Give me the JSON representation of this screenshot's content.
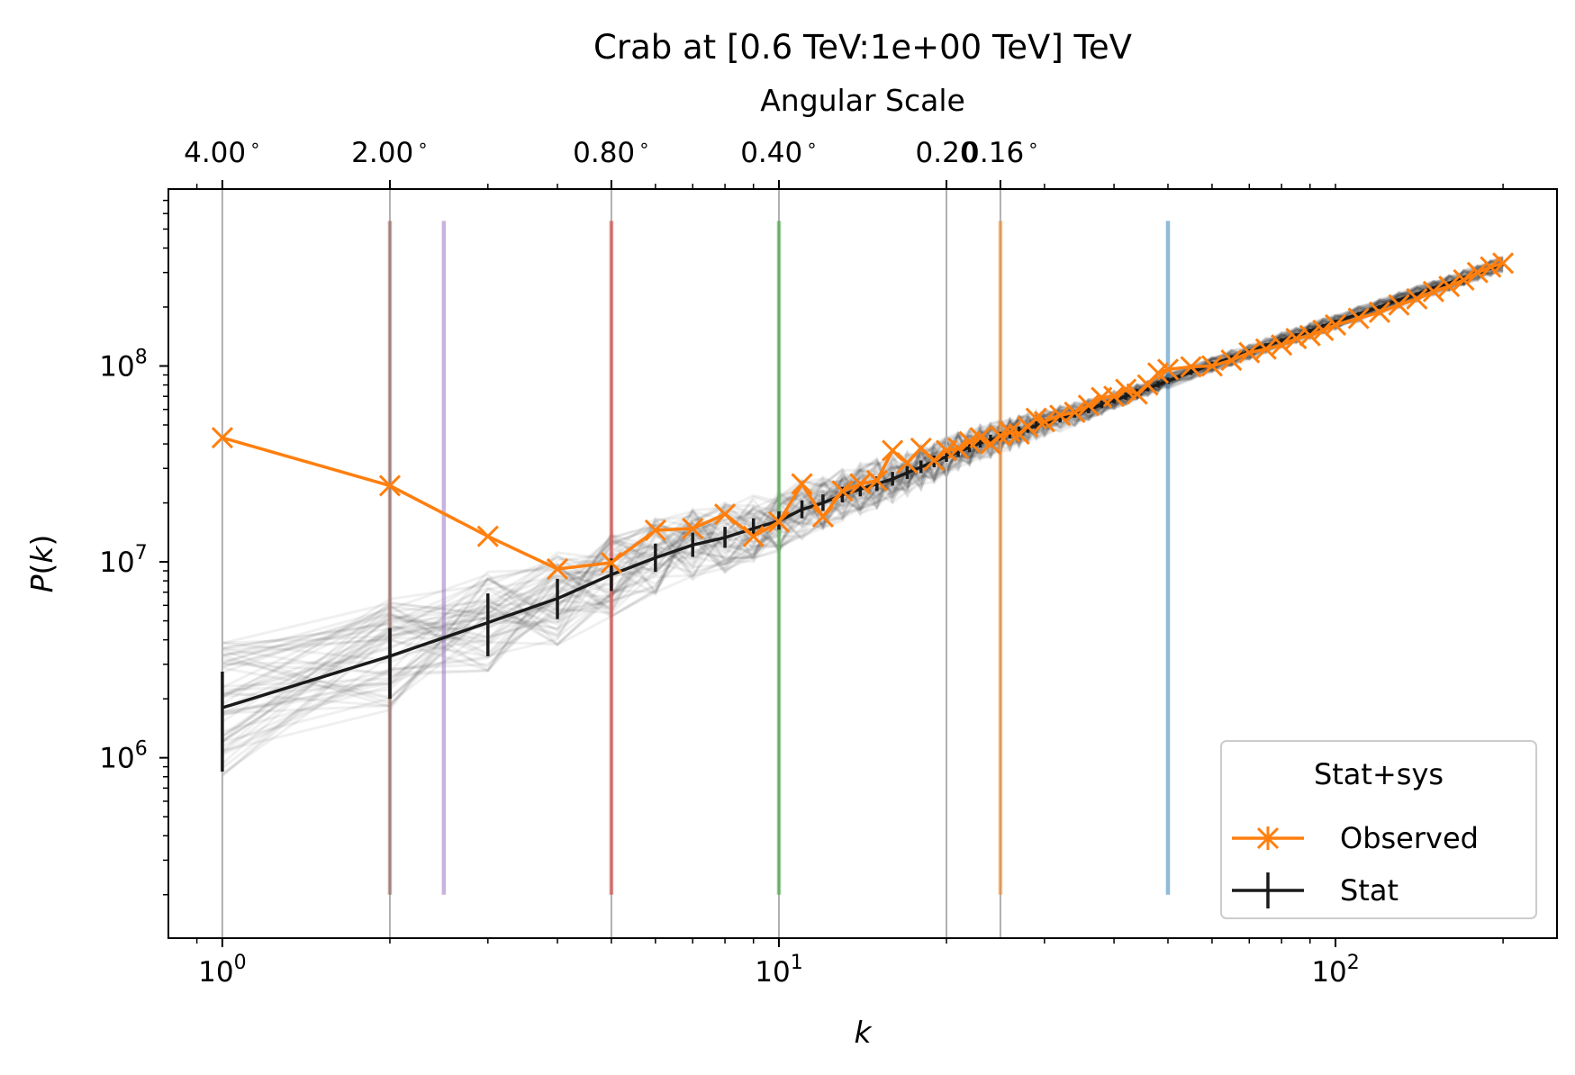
{
  "chart_data": {
    "type": "line",
    "title": "Crab at [0.6 TeV:1e+00 TeV] TeV",
    "xlabel": "k",
    "ylabel": "P(k)",
    "xscale": "log",
    "yscale": "log",
    "xlim": [
      0.8,
      250
    ],
    "ylim": [
      120000,
      800000000
    ],
    "x_ticks": [
      {
        "value": 1,
        "base": "10",
        "exp": "0"
      },
      {
        "value": 10,
        "base": "10",
        "exp": "1"
      },
      {
        "value": 100,
        "base": "10",
        "exp": "2"
      }
    ],
    "y_ticks": [
      {
        "value": 1000000,
        "base": "10",
        "exp": "6"
      },
      {
        "value": 10000000,
        "base": "10",
        "exp": "7"
      },
      {
        "value": 100000000,
        "base": "10",
        "exp": "8"
      }
    ],
    "top_axis": {
      "label": "Angular Scale",
      "ticks": [
        {
          "k": 1,
          "label": "4.00$^\\circ$",
          "text": "4.00",
          "deg": "∘"
        },
        {
          "k": 2,
          "label": "2.00",
          "text": "2.00",
          "deg": "∘"
        },
        {
          "k": 5,
          "label": "0.80",
          "text": "0.80",
          "deg": "∘"
        },
        {
          "k": 10,
          "label": "0.40",
          "text": "0.40",
          "deg": "∘"
        },
        {
          "k": 20,
          "label": "0.20",
          "text": "0.20",
          "deg": ""
        },
        {
          "k": 25,
          "label": "0.16",
          "text": "0.16",
          "deg": "∘"
        }
      ]
    },
    "vertical_lines": [
      {
        "k": 2,
        "color": "#8c564b"
      },
      {
        "k": 2.5,
        "color": "#9467bd"
      },
      {
        "k": 5,
        "color": "#d62728"
      },
      {
        "k": 10,
        "color": "#2ca02c"
      },
      {
        "k": 25,
        "color": "#ff7f0e"
      },
      {
        "k": 50,
        "color": "#1f77b4"
      }
    ],
    "grid_lines_k": [
      1,
      2,
      5,
      10,
      20,
      25
    ],
    "series": [
      {
        "name": "Observed",
        "color": "#ff7f0e",
        "marker": "x",
        "x": [
          1,
          2,
          3,
          4,
          5,
          6,
          7,
          8,
          9,
          10,
          11,
          12,
          13,
          14,
          15,
          16,
          17,
          18,
          19,
          20,
          21,
          22,
          23,
          24,
          25,
          26,
          27,
          28,
          29,
          30,
          32,
          34,
          36,
          38,
          40,
          42,
          44,
          46,
          48,
          50,
          55,
          60,
          65,
          70,
          75,
          80,
          85,
          90,
          95,
          100,
          110,
          120,
          130,
          140,
          150,
          160,
          170,
          180,
          190,
          200
        ],
        "y": [
          43000000.0,
          24500000.0,
          13500000.0,
          9200000.0,
          9900000.0,
          14500000.0,
          14800000.0,
          17500000.0,
          13500000.0,
          16000000.0,
          25000000.0,
          17000000.0,
          23000000.0,
          25000000.0,
          26000000.0,
          37000000.0,
          32000000.0,
          38000000.0,
          33000000.0,
          37000000.0,
          38000000.0,
          41000000.0,
          43000000.0,
          40000000.0,
          44000000.0,
          46000000.0,
          45000000.0,
          49000000.0,
          54000000.0,
          52000000.0,
          56000000.0,
          58000000.0,
          63000000.0,
          69000000.0,
          70000000.0,
          76000000.0,
          72000000.0,
          80000000.0,
          92000000.0,
          96000000.0,
          99000000.0,
          100000000.0,
          107000000.0,
          117000000.0,
          122000000.0,
          128000000.0,
          138000000.0,
          143000000.0,
          152000000.0,
          162000000.0,
          175000000.0,
          188000000.0,
          205000000.0,
          220000000.0,
          240000000.0,
          255000000.0,
          275000000.0,
          300000000.0,
          320000000.0,
          335000000.0
        ]
      },
      {
        "name": "Stat",
        "color": "#1a1a1a",
        "marker": "errorbar",
        "x": [
          1,
          2,
          3,
          4,
          5,
          6,
          7,
          8,
          9,
          10,
          11,
          12,
          13,
          14,
          15,
          16,
          17,
          18,
          19,
          20,
          21,
          22,
          23,
          24,
          25,
          26,
          27,
          28,
          29,
          30,
          32,
          34,
          36,
          38,
          40,
          42,
          44,
          46,
          48,
          50,
          55,
          60,
          65,
          70,
          75,
          80,
          85,
          90,
          95,
          100,
          110,
          120,
          130,
          140,
          150,
          160,
          170,
          180,
          190,
          200
        ],
        "y": [
          1800000.0,
          3300000.0,
          4900000.0,
          6500000.0,
          8600000.0,
          10500000.0,
          12200000.0,
          13300000.0,
          14800000.0,
          16200000.0,
          18500000.0,
          20000000.0,
          22000000.0,
          23500000.0,
          25000000.0,
          26500000.0,
          28500000.0,
          30500000.0,
          32500000.0,
          34500000.0,
          36500000.0,
          38500000.0,
          40500000.0,
          42000000.0,
          43500000.0,
          45000000.0,
          46500000.0,
          48000000.0,
          49500000.0,
          51000000.0,
          54000000.0,
          57000000.0,
          60000000.0,
          63500000.0,
          67000000.0,
          70000000.0,
          73500000.0,
          77000000.0,
          80500000.0,
          84000000.0,
          93000000.0,
          102000000.0,
          110000000.0,
          118000000.0,
          127000000.0,
          135000000.0,
          143000000.0,
          151000000.0,
          160000000.0,
          168000000.0,
          184000000.0,
          200000000.0,
          217000000.0,
          233000000.0,
          250000000.0,
          265000000.0,
          282000000.0,
          298000000.0,
          315000000.0,
          330000000.0
        ],
        "err_low": [
          950000.0,
          1300000.0,
          1600000.0,
          1400000.0,
          1500000.0,
          1600000.0,
          1600000.0,
          1500000.0,
          1600000.0,
          1600000.0,
          1800000.0,
          1800000.0,
          1900000.0,
          1900000.0,
          2000000.0,
          2000000.0,
          2000000.0,
          2100000.0,
          2100000.0,
          2100000.0,
          2200000.0,
          2200000.0,
          2200000.0,
          2300000.0,
          2300000.0,
          2300000.0,
          2300000.0,
          2400000.0,
          2400000.0,
          2400000.0,
          2500000.0,
          2500000.0,
          2600000.0,
          2600000.0,
          2700000.0,
          2700000.0,
          2800000.0,
          2800000.0,
          2900000.0,
          2900000.0,
          3000000.0,
          3100000.0,
          3200000.0,
          3300000.0,
          3400000.0,
          3500000.0,
          3600000.0,
          3700000.0,
          3800000.0,
          3900000.0,
          4100000.0,
          4300000.0,
          4500000.0,
          4700000.0,
          4900000.0,
          5100000.0,
          5300000.0,
          5500000.0,
          5700000.0,
          5900000.0
        ],
        "err_high": [
          950000.0,
          1300000.0,
          2000000.0,
          1700000.0,
          1800000.0,
          1900000.0,
          1900000.0,
          1800000.0,
          1900000.0,
          1900000.0,
          2100000.0,
          2100000.0,
          2200000.0,
          2200000.0,
          2300000.0,
          2300000.0,
          2300000.0,
          2400000.0,
          2400000.0,
          2400000.0,
          2500000.0,
          2500000.0,
          2500000.0,
          2600000.0,
          2600000.0,
          2600000.0,
          2600000.0,
          2700000.0,
          2700000.0,
          2700000.0,
          2800000.0,
          2800000.0,
          2900000.0,
          2900000.0,
          3000000.0,
          3000000.0,
          3100000.0,
          3100000.0,
          3200000.0,
          3200000.0,
          3300000.0,
          3400000.0,
          3500000.0,
          3600000.0,
          3700000.0,
          3800000.0,
          3900000.0,
          4000000.0,
          4100000.0,
          4200000.0,
          4400000.0,
          4600000.0,
          4800000.0,
          5000000.0,
          5200000.0,
          5400000.0,
          5600000.0,
          5800000.0,
          6000000.0,
          6200000.0
        ]
      }
    ],
    "background_realizations": {
      "count": 60,
      "color": "#000000",
      "opacity": 0.06,
      "spread_low_k": 0.35,
      "spread_high_k": 0.04
    },
    "legend": {
      "title": "Stat+sys",
      "position": "lower right",
      "entries": [
        "Observed",
        "Stat"
      ]
    },
    "grid": false
  }
}
